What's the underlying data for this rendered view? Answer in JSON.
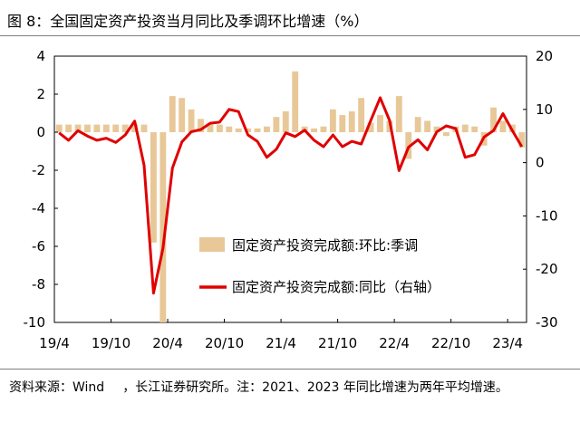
{
  "title": "图 8：全国固定资产投资当月同比及季调环比增速（%）",
  "source": {
    "label": "资料来源：",
    "name": "Wind",
    "text": "，长江证券研究所。注：2021、2023 年同比增速为两年平均增速。"
  },
  "chart_data": {
    "type": "bar",
    "title": "",
    "xlabel": "",
    "x_tick_labels": [
      "19/4",
      "19/10",
      "20/4",
      "20/10",
      "21/4",
      "21/10",
      "22/4",
      "22/10",
      "23/4"
    ],
    "x": [
      "2019-04",
      "2019-05",
      "2019-06",
      "2019-07",
      "2019-08",
      "2019-09",
      "2019-10",
      "2019-11",
      "2019-12",
      "2020-01",
      "2020-02",
      "2020-03",
      "2020-04",
      "2020-05",
      "2020-06",
      "2020-07",
      "2020-08",
      "2020-09",
      "2020-10",
      "2020-11",
      "2020-12",
      "2021-01",
      "2021-02",
      "2021-03",
      "2021-04",
      "2021-05",
      "2021-06",
      "2021-07",
      "2021-08",
      "2021-09",
      "2021-10",
      "2021-11",
      "2021-12",
      "2022-01",
      "2022-02",
      "2022-03",
      "2022-04",
      "2022-05",
      "2022-06",
      "2022-07",
      "2022-08",
      "2022-09",
      "2022-10",
      "2022-11",
      "2022-12",
      "2023-01",
      "2023-02",
      "2023-03",
      "2023-04",
      "2023-05"
    ],
    "left_axis": {
      "ylim": [
        -10,
        4
      ],
      "ticks": [
        4,
        2,
        0,
        -2,
        -4,
        -6,
        -8,
        -10
      ]
    },
    "right_axis": {
      "ylim": [
        -30,
        20
      ],
      "ticks": [
        20,
        10,
        0,
        -10,
        -20,
        -30
      ]
    },
    "legend": {
      "placement": "center-right"
    },
    "series": [
      {
        "name": "固定资产投资完成额:环比:季调",
        "type": "bar",
        "axis": "left",
        "color": "#e8c898",
        "values": [
          0.4,
          0.4,
          0.4,
          0.4,
          0.4,
          0.4,
          0.4,
          0.4,
          0.4,
          0.4,
          -5.8,
          -10.0,
          1.9,
          1.8,
          1.2,
          0.7,
          0.4,
          0.4,
          0.3,
          0.2,
          0.2,
          0.2,
          0.3,
          0.8,
          1.1,
          3.2,
          0.3,
          0.2,
          0.3,
          1.2,
          0.9,
          1.1,
          1.8,
          0.5,
          0.9,
          0.6,
          1.9,
          -1.4,
          0.8,
          0.6,
          0.3,
          -0.2,
          0.3,
          0.4,
          0.3,
          -0.7,
          1.3,
          0.6,
          0.4,
          -0.8
        ]
      },
      {
        "name": "固定资产投资完成额:同比（右轴）",
        "type": "line",
        "axis": "right",
        "color": "#e00000",
        "values": [
          5.6,
          4.2,
          6.0,
          5.0,
          4.2,
          4.6,
          3.8,
          5.2,
          7.8,
          -0.5,
          -24.5,
          -16.1,
          -1.0,
          3.9,
          5.8,
          6.2,
          7.4,
          7.6,
          10.0,
          9.6,
          5.2,
          4.0,
          1.0,
          2.5,
          5.6,
          4.9,
          6.1,
          4.2,
          3.0,
          5.2,
          3.0,
          4.0,
          3.5,
          7.9,
          12.2,
          7.9,
          -1.5,
          2.9,
          4.3,
          2.4,
          5.8,
          6.9,
          6.4,
          1.0,
          1.5,
          4.8,
          6.0,
          9.2,
          6.0,
          3.0
        ]
      }
    ]
  }
}
